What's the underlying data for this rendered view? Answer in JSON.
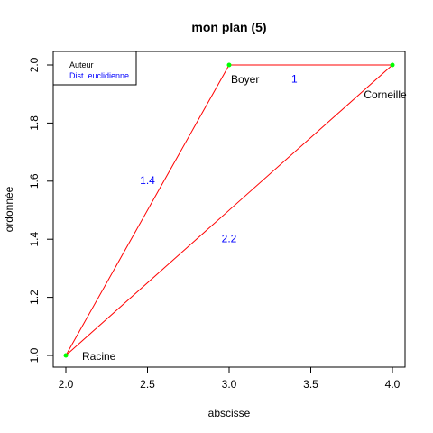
{
  "chart_data": {
    "type": "scatter",
    "title": "mon plan (5)",
    "xlabel": "abscisse",
    "ylabel": "ordonnée",
    "xlim": [
      2.0,
      4.0
    ],
    "ylim": [
      1.0,
      2.0
    ],
    "xticks": [
      "2.0",
      "2.5",
      "3.0",
      "3.5",
      "4.0"
    ],
    "yticks": [
      "1.0",
      "1.2",
      "1.4",
      "1.6",
      "1.8",
      "2.0"
    ],
    "points": [
      {
        "name": "Racine",
        "x": 2,
        "y": 1
      },
      {
        "name": "Boyer",
        "x": 3,
        "y": 2
      },
      {
        "name": "Corneille",
        "x": 4,
        "y": 2
      }
    ],
    "segments": [
      {
        "from": "Racine",
        "to": "Boyer",
        "label": "1.4",
        "label_x": 2.5,
        "label_y": 1.6
      },
      {
        "from": "Boyer",
        "to": "Corneille",
        "label": "1",
        "label_x": 3.4,
        "label_y": 1.95
      },
      {
        "from": "Racine",
        "to": "Corneille",
        "label": "2.2",
        "label_x": 3.0,
        "label_y": 1.4
      }
    ],
    "legend": {
      "placement": "top-left",
      "entries": [
        {
          "label": "Auteur",
          "color": "#000000"
        },
        {
          "label": "Dist. euclidienne",
          "color": "#0000ff"
        }
      ]
    },
    "colors": {
      "point": "#00ff00",
      "segment": "#ff0000",
      "distance_label": "#0000ff"
    },
    "grid": false
  }
}
